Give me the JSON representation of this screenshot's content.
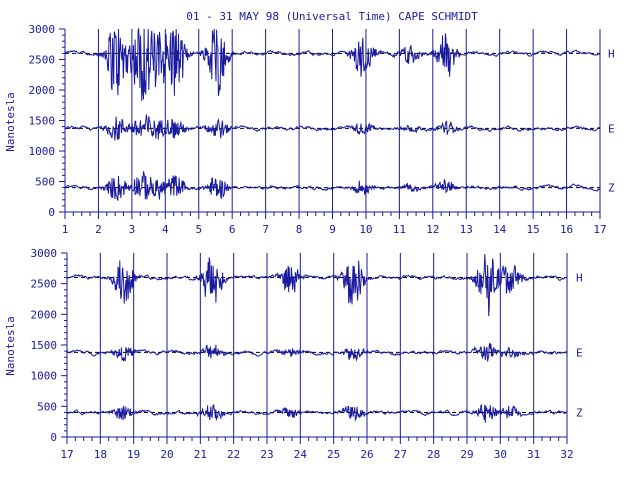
{
  "title": "01 - 31 MAY 98 (Universal Time) CAPE SCHMIDT",
  "ylabel": "Nanotesla",
  "colors": {
    "trace": "#1a1aa0",
    "frame": "#1a1aa0",
    "baseline": "#000000",
    "background": "#ffffff"
  },
  "chart_data": [
    {
      "type": "line",
      "xlim": [
        1,
        17
      ],
      "ylim": [
        0,
        3000
      ],
      "x_ticks": [
        "1",
        "2",
        "3",
        "4",
        "5",
        "6",
        "7",
        "8",
        "9",
        "10",
        "11",
        "12",
        "13",
        "14",
        "15",
        "16",
        "17"
      ],
      "y_ticks": [
        "0",
        "500",
        "1000",
        "1500",
        "2000",
        "2500",
        "3000"
      ],
      "series": [
        {
          "name": "H",
          "baseline": 2600
        },
        {
          "name": "E",
          "baseline": 1370
        },
        {
          "name": "Z",
          "baseline": 400
        }
      ],
      "events": [
        {
          "day": 2.55,
          "amp": 1.0
        },
        {
          "day": 3.3,
          "amp": 1.0
        },
        {
          "day": 3.75,
          "amp": 0.7
        },
        {
          "day": 4.3,
          "amp": 0.8
        },
        {
          "day": 5.55,
          "amp": 0.9
        },
        {
          "day": 9.9,
          "amp": 0.5
        },
        {
          "day": 11.3,
          "amp": 0.25
        },
        {
          "day": 12.4,
          "amp": 0.5
        }
      ]
    },
    {
      "type": "line",
      "xlim": [
        17,
        32
      ],
      "ylim": [
        0,
        3000
      ],
      "x_ticks": [
        "17",
        "18",
        "19",
        "20",
        "21",
        "22",
        "23",
        "24",
        "25",
        "26",
        "27",
        "28",
        "29",
        "30",
        "31",
        "32"
      ],
      "y_ticks": [
        "0",
        "500",
        "1000",
        "1500",
        "2000",
        "2500",
        "3000"
      ],
      "series": [
        {
          "name": "H",
          "baseline": 2600
        },
        {
          "name": "E",
          "baseline": 1380
        },
        {
          "name": "Z",
          "baseline": 400
        }
      ],
      "events": [
        {
          "day": 18.7,
          "amp": 0.55
        },
        {
          "day": 21.35,
          "amp": 0.6
        },
        {
          "day": 23.7,
          "amp": 0.35
        },
        {
          "day": 25.6,
          "amp": 0.55
        },
        {
          "day": 29.6,
          "amp": 0.7
        },
        {
          "day": 30.3,
          "amp": 0.4
        }
      ]
    }
  ]
}
